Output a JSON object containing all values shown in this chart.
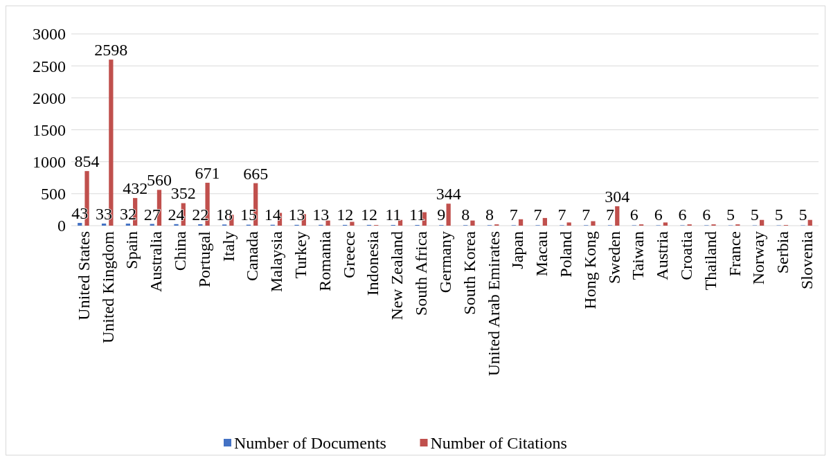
{
  "chart_data": {
    "type": "bar",
    "categories": [
      "United States",
      "United Kingdom",
      "Spain",
      "Australia",
      "China",
      "Portugal",
      "Italy",
      "Canada",
      "Malaysia",
      "Turkey",
      "Romania",
      "Greece",
      "Indonesia",
      "New Zealand",
      "South Africa",
      "Germany",
      "South Korea",
      "United Arab Emirates",
      "Japan",
      "Macau",
      "Poland",
      "Hong Kong",
      "Sweden",
      "Taiwan",
      "Austria",
      "Croatia",
      "Thailand",
      "France",
      "Norway",
      "Serbia",
      "Slovenia"
    ],
    "series": [
      {
        "name": "Number of Documents",
        "color": "#4472c4",
        "values": [
          43,
          33,
          32,
          27,
          24,
          22,
          18,
          15,
          14,
          13,
          13,
          12,
          12,
          11,
          11,
          9,
          8,
          8,
          7,
          7,
          7,
          7,
          7,
          6,
          6,
          6,
          6,
          5,
          5,
          5,
          5
        ],
        "value_labels": [
          "43",
          "33",
          "32",
          "27",
          "24",
          "22",
          "18",
          "15",
          "14",
          "13",
          "13",
          "12",
          "12",
          "11",
          "11",
          "9",
          "8",
          "8",
          "7",
          "7",
          "7",
          "7",
          "7",
          "6",
          "6",
          "6",
          "6",
          "5",
          "5",
          "5",
          "5"
        ]
      },
      {
        "name": "Number of Citations",
        "color": "#c0504d",
        "values": [
          854,
          2598,
          432,
          560,
          352,
          671,
          170,
          665,
          200,
          180,
          80,
          60,
          10,
          90,
          210,
          344,
          80,
          20,
          100,
          120,
          50,
          70,
          304,
          20,
          50,
          20,
          20,
          20,
          90,
          10,
          90
        ],
        "value_labels": [
          "854",
          "2598",
          "432",
          "560",
          "352",
          "671",
          null,
          "665",
          null,
          null,
          null,
          null,
          null,
          null,
          null,
          "344",
          null,
          null,
          null,
          null,
          null,
          null,
          "304",
          null,
          null,
          null,
          null,
          null,
          null,
          null,
          null
        ]
      }
    ],
    "ylim": [
      0,
      3000
    ],
    "yticks": [
      0,
      500,
      1000,
      1500,
      2000,
      2500,
      3000
    ],
    "grid": "y",
    "legend": "bottom"
  }
}
